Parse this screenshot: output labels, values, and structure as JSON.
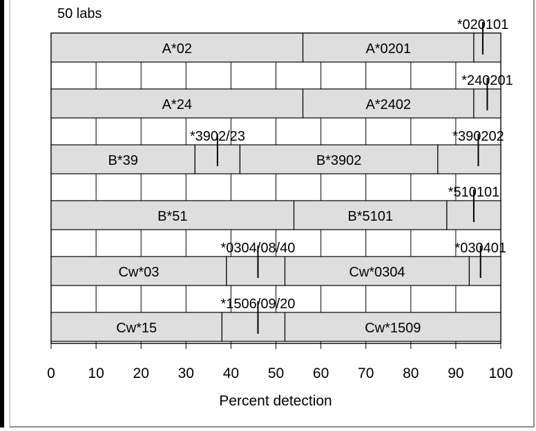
{
  "chart_data": {
    "type": "bar",
    "orientation": "horizontal-stacked",
    "subtitle": "50 labs",
    "xlabel": "Percent detection",
    "xlim": [
      0,
      100
    ],
    "xticks": [
      0,
      10,
      20,
      30,
      40,
      50,
      60,
      70,
      80,
      90,
      100
    ],
    "grid": true,
    "bar_color": "#dedede",
    "rows": [
      {
        "segments": [
          {
            "label": "A*02",
            "start": 0,
            "end": 56
          },
          {
            "label": "A*0201",
            "start": 56,
            "end": 94
          },
          {
            "label": "",
            "start": 94,
            "end": 100
          }
        ],
        "callouts": [
          {
            "label": "*020101",
            "value": 96
          }
        ]
      },
      {
        "segments": [
          {
            "label": "A*24",
            "start": 0,
            "end": 56
          },
          {
            "label": "A*2402",
            "start": 56,
            "end": 94
          },
          {
            "label": "",
            "start": 94,
            "end": 100
          }
        ],
        "callouts": [
          {
            "label": "*240201",
            "value": 97
          }
        ]
      },
      {
        "segments": [
          {
            "label": "B*39",
            "start": 0,
            "end": 32
          },
          {
            "label": "",
            "start": 32,
            "end": 42
          },
          {
            "label": "B*3902",
            "start": 42,
            "end": 86
          },
          {
            "label": "",
            "start": 86,
            "end": 100
          }
        ],
        "callouts": [
          {
            "label": "*3902/23",
            "value": 37
          },
          {
            "label": "*390202",
            "value": 95
          }
        ]
      },
      {
        "segments": [
          {
            "label": "B*51",
            "start": 0,
            "end": 54
          },
          {
            "label": "B*5101",
            "start": 54,
            "end": 88
          },
          {
            "label": "",
            "start": 88,
            "end": 100
          }
        ],
        "callouts": [
          {
            "label": "*510101",
            "value": 94
          }
        ]
      },
      {
        "segments": [
          {
            "label": "Cw*03",
            "start": 0,
            "end": 39
          },
          {
            "label": "",
            "start": 39,
            "end": 52
          },
          {
            "label": "Cw*0304",
            "start": 52,
            "end": 93
          },
          {
            "label": "",
            "start": 93,
            "end": 100
          }
        ],
        "callouts": [
          {
            "label": "*0304/08/40",
            "value": 46
          },
          {
            "label": "*030401",
            "value": 95.5
          }
        ]
      },
      {
        "segments": [
          {
            "label": "Cw*15",
            "start": 0,
            "end": 38
          },
          {
            "label": "",
            "start": 38,
            "end": 52
          },
          {
            "label": "Cw*1509",
            "start": 52,
            "end": 100
          }
        ],
        "callouts": [
          {
            "label": "*1506/09/20",
            "value": 46
          }
        ]
      }
    ]
  }
}
